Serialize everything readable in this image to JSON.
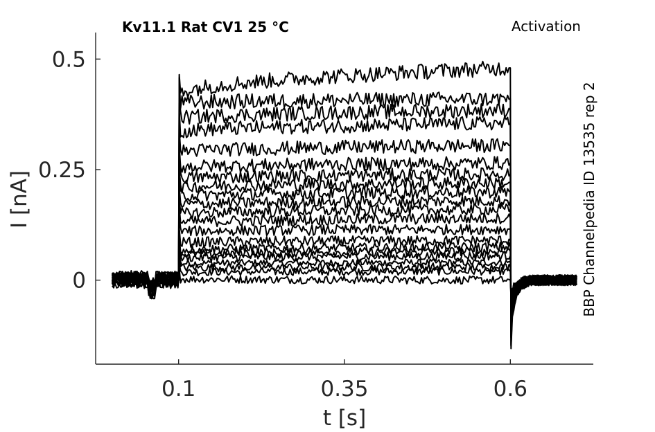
{
  "chart_data": {
    "type": "line",
    "title_left": "Kv11.1  Rat  CV1  25 °C",
    "title_right": "Activation",
    "side_note": "BBP Channelpedia ID 13535 rep 2",
    "xlabel": "t [s]",
    "ylabel": "I [nA]",
    "xlim": [
      -0.025,
      0.725
    ],
    "ylim": [
      -0.19,
      0.56
    ],
    "xticks": [
      0.1,
      0.35,
      0.6
    ],
    "xtick_labels": [
      "0.1",
      "0.35",
      "0.6"
    ],
    "yticks": [
      0,
      0.25,
      0.5
    ],
    "ytick_labels": [
      "0",
      "0.25",
      "0.5"
    ],
    "grid": false,
    "legend": "none",
    "x_start": 0.0,
    "x_end": 0.7,
    "pulse_start": 0.1,
    "pulse_end": 0.6,
    "color": "#000000",
    "series": [
      {
        "values": [
          0.0,
          0.038,
          0.04
        ]
      },
      {
        "values": [
          0.0,
          0.018,
          0.02
        ]
      },
      {
        "values": [
          0.0,
          0.003,
          0.0
        ]
      },
      {
        "values": [
          0.0,
          0.028,
          0.03
        ]
      },
      {
        "values": [
          0.0,
          0.05,
          0.055
        ]
      },
      {
        "values": [
          0.0,
          0.058,
          0.065
        ]
      },
      {
        "values": [
          0.0,
          0.068,
          0.075
        ]
      },
      {
        "values": [
          0.0,
          0.085,
          0.09
        ]
      },
      {
        "values": [
          0.0,
          0.11,
          0.115
        ]
      },
      {
        "values": [
          0.0,
          0.13,
          0.14
        ]
      },
      {
        "values": [
          0.0,
          0.15,
          0.16
        ]
      },
      {
        "values": [
          0.0,
          0.17,
          0.18
        ]
      },
      {
        "values": [
          0.0,
          0.19,
          0.2
        ]
      },
      {
        "values": [
          0.0,
          0.21,
          0.22
        ]
      },
      {
        "values": [
          0.0,
          0.23,
          0.24
        ]
      },
      {
        "values": [
          0.0,
          0.255,
          0.265
        ]
      },
      {
        "values": [
          0.0,
          0.29,
          0.305
        ]
      },
      {
        "values": [
          0.0,
          0.335,
          0.355
        ]
      },
      {
        "values": [
          0.0,
          0.365,
          0.385
        ]
      },
      {
        "values": [
          0.0,
          0.4,
          0.41
        ]
      },
      {
        "values": [
          0.0,
          0.42,
          0.48
        ]
      }
    ]
  }
}
